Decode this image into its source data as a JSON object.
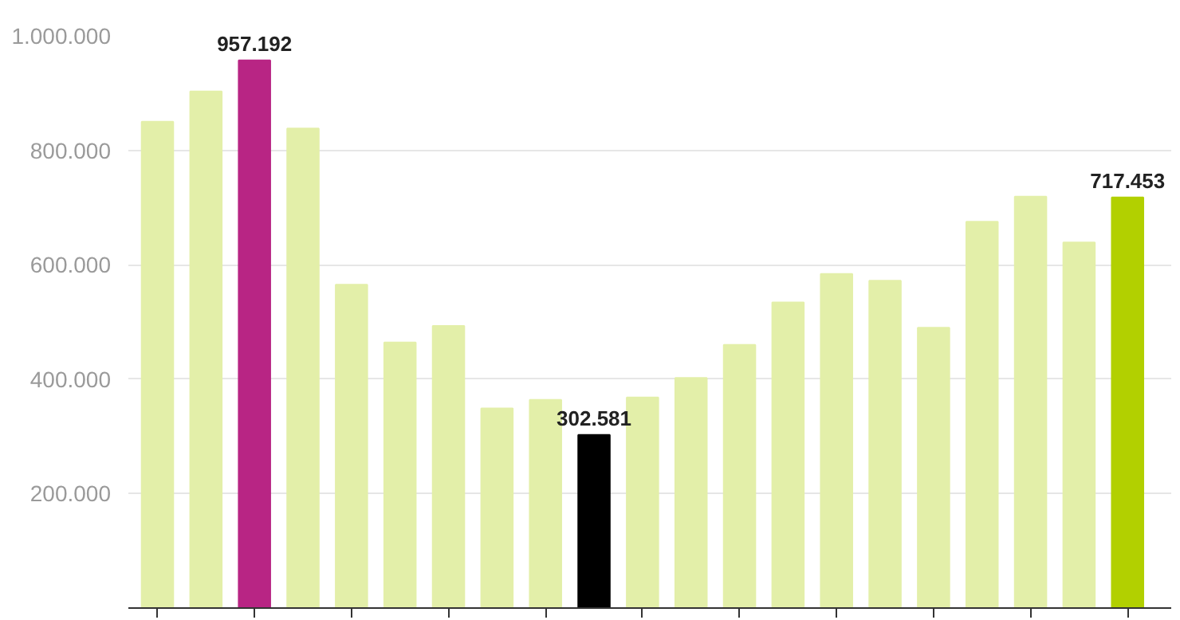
{
  "chart_data": {
    "type": "bar",
    "categories": [
      null,
      null,
      null,
      null,
      null,
      null,
      null,
      null,
      null,
      null,
      null,
      null,
      null,
      null,
      null,
      null,
      null,
      null,
      null,
      null,
      null
    ],
    "values": [
      850000,
      903000,
      957192,
      838000,
      565000,
      464000,
      493000,
      349000,
      364000,
      302581,
      368000,
      402000,
      460000,
      534000,
      584000,
      572000,
      490000,
      675000,
      719000,
      639000,
      717453
    ],
    "colors": [
      "#e3efa9",
      "#e3efa9",
      "#b82584",
      "#e3efa9",
      "#e3efa9",
      "#e3efa9",
      "#e3efa9",
      "#e3efa9",
      "#e3efa9",
      "#000000",
      "#e3efa9",
      "#e3efa9",
      "#e3efa9",
      "#e3efa9",
      "#e3efa9",
      "#e3efa9",
      "#e3efa9",
      "#e3efa9",
      "#e3efa9",
      "#e3efa9",
      "#b2d000"
    ],
    "value_labels": [
      null,
      null,
      "957.192",
      null,
      null,
      null,
      null,
      null,
      null,
      "302.581",
      null,
      null,
      null,
      null,
      null,
      null,
      null,
      null,
      null,
      null,
      "717.453"
    ],
    "ylim": [
      0,
      1000000
    ],
    "yticks": [
      {
        "value": 200000,
        "label": "200.000"
      },
      {
        "value": 400000,
        "label": "400.000"
      },
      {
        "value": 600000,
        "label": "600.000"
      },
      {
        "value": 800000,
        "label": "800.000"
      },
      {
        "value": 1000000,
        "label": "1.000.000"
      }
    ],
    "grid": "y"
  }
}
